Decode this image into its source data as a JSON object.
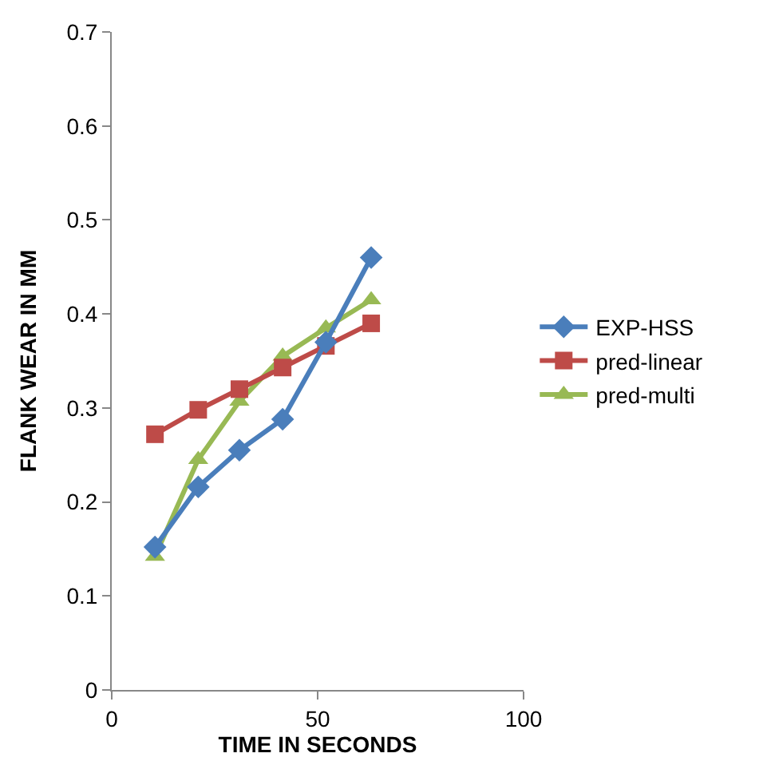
{
  "chart_data": {
    "type": "line",
    "xlabel": "TIME IN SECONDS",
    "ylabel": "FLANK WEAR IN MM",
    "x": [
      10.5,
      21,
      31,
      41.5,
      52,
      63
    ],
    "series": [
      {
        "name": "EXP-HSS",
        "color": "#4a7ebb",
        "values": [
          0.152,
          0.216,
          0.255,
          0.288,
          0.37,
          0.46
        ],
        "marker": "diamond"
      },
      {
        "name": "pred-linear",
        "color": "#be4b48",
        "values": [
          0.272,
          0.298,
          0.32,
          0.343,
          0.366,
          0.39
        ],
        "marker": "square"
      },
      {
        "name": "pred-multi",
        "color": "#98b954",
        "values": [
          0.142,
          0.245,
          0.307,
          0.355,
          0.385,
          0.415
        ],
        "marker": "triangle"
      }
    ],
    "xlim": [
      0,
      100
    ],
    "xticks": [
      0,
      50,
      100
    ],
    "ylim": [
      0,
      0.7
    ],
    "yticks": [
      0,
      0.1,
      0.2,
      0.3,
      0.4,
      0.5,
      0.6,
      0.7
    ],
    "legend": "right",
    "grid": false,
    "line_style": "solid"
  }
}
